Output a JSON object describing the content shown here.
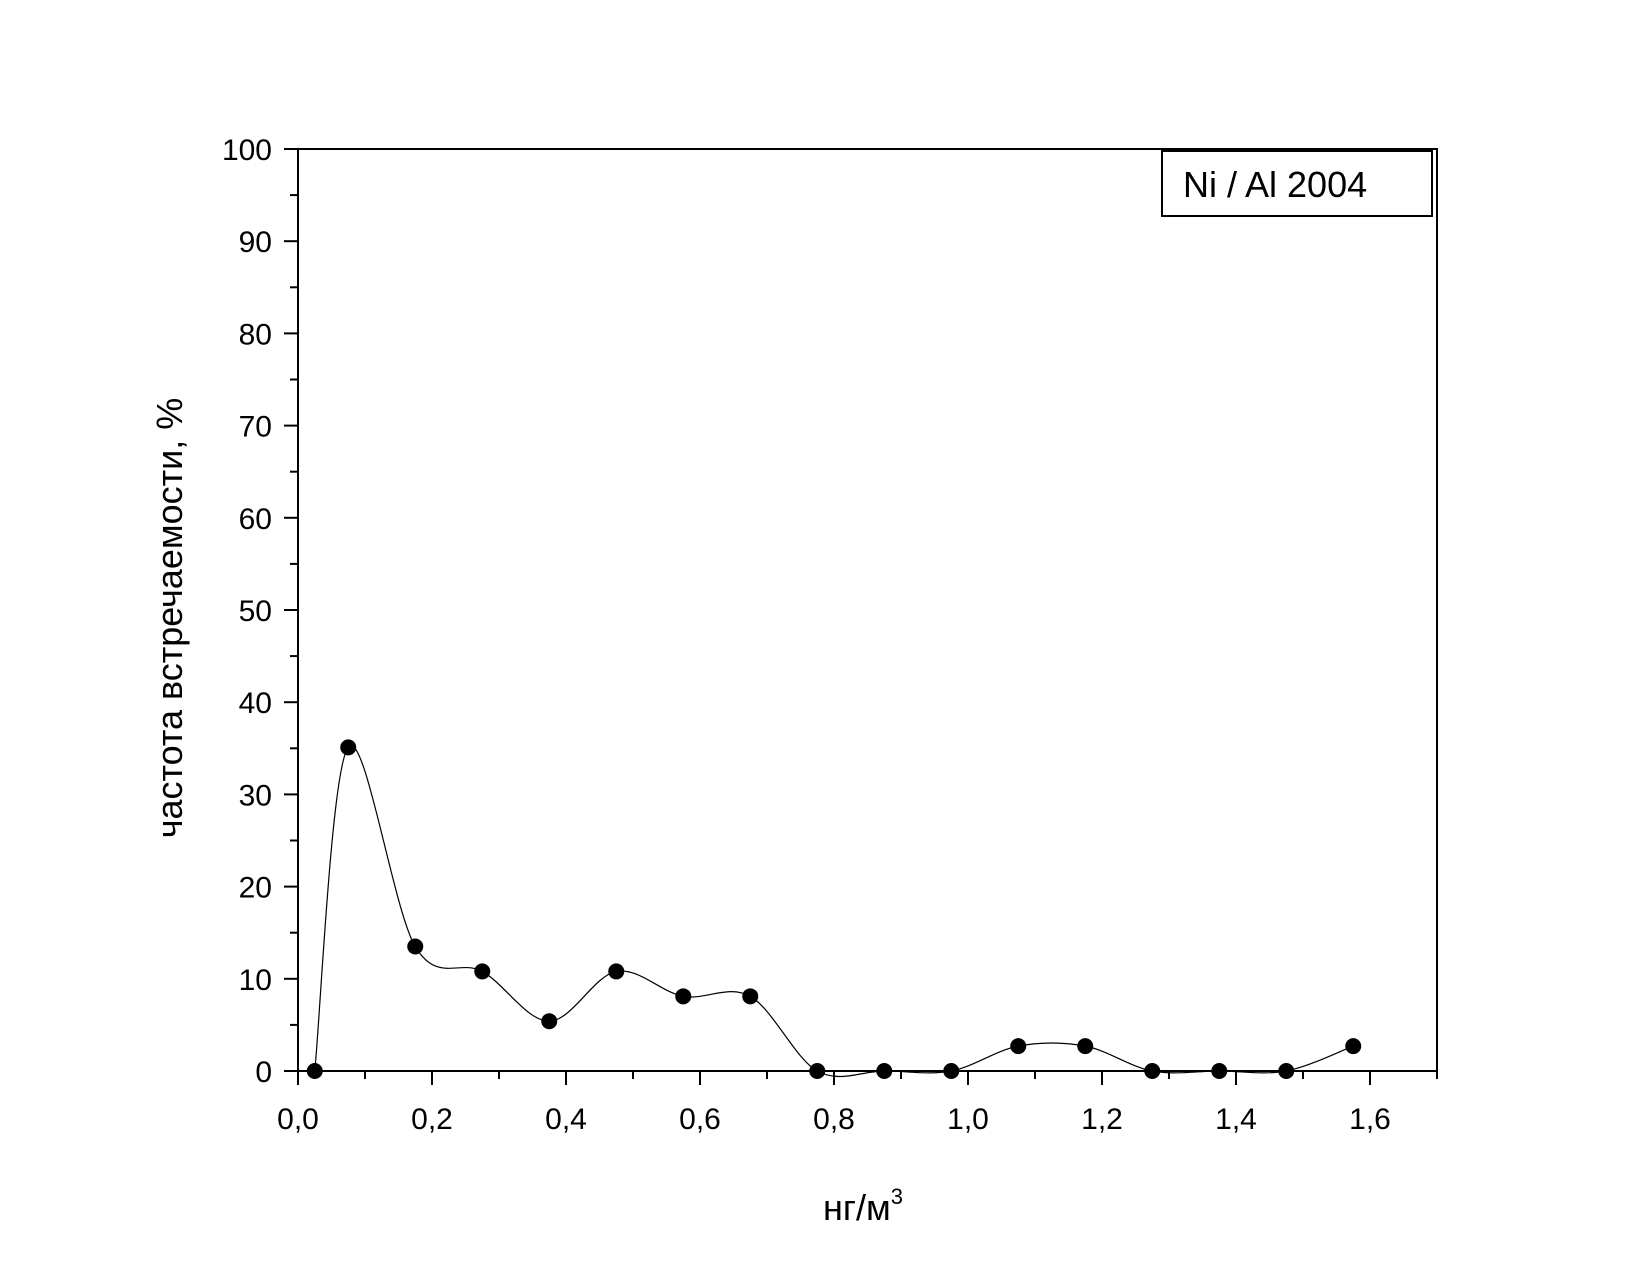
{
  "chart_data": {
    "type": "scatter",
    "title": "",
    "legend_text": "Ni / Al 2004",
    "legend_position": "top-right",
    "xlabel": "нг/м",
    "xlabel_superscript": "3",
    "ylabel": "частота встречаемости, %",
    "xlim": [
      0.0,
      1.7
    ],
    "ylim": [
      0,
      100
    ],
    "grid": false,
    "x_ticks": [
      "0,0",
      "0,2",
      "0,4",
      "0,6",
      "0,8",
      "1,0",
      "1,2",
      "1,4",
      "1,6"
    ],
    "y_ticks": [
      "0",
      "10",
      "20",
      "30",
      "40",
      "50",
      "60",
      "70",
      "80",
      "90",
      "100"
    ],
    "series": [
      {
        "marker": "filled-circle",
        "line": "smooth spline",
        "x": [
          0.025,
          0.075,
          0.175,
          0.275,
          0.375,
          0.475,
          0.575,
          0.675,
          0.775,
          0.875,
          0.975,
          1.075,
          1.175,
          1.275,
          1.375,
          1.475,
          1.575
        ],
        "y": [
          0,
          35.1,
          13.5,
          10.8,
          5.4,
          10.8,
          8.1,
          8.1,
          0,
          0,
          0,
          2.7,
          2.7,
          0,
          0,
          0,
          2.7
        ]
      }
    ]
  }
}
